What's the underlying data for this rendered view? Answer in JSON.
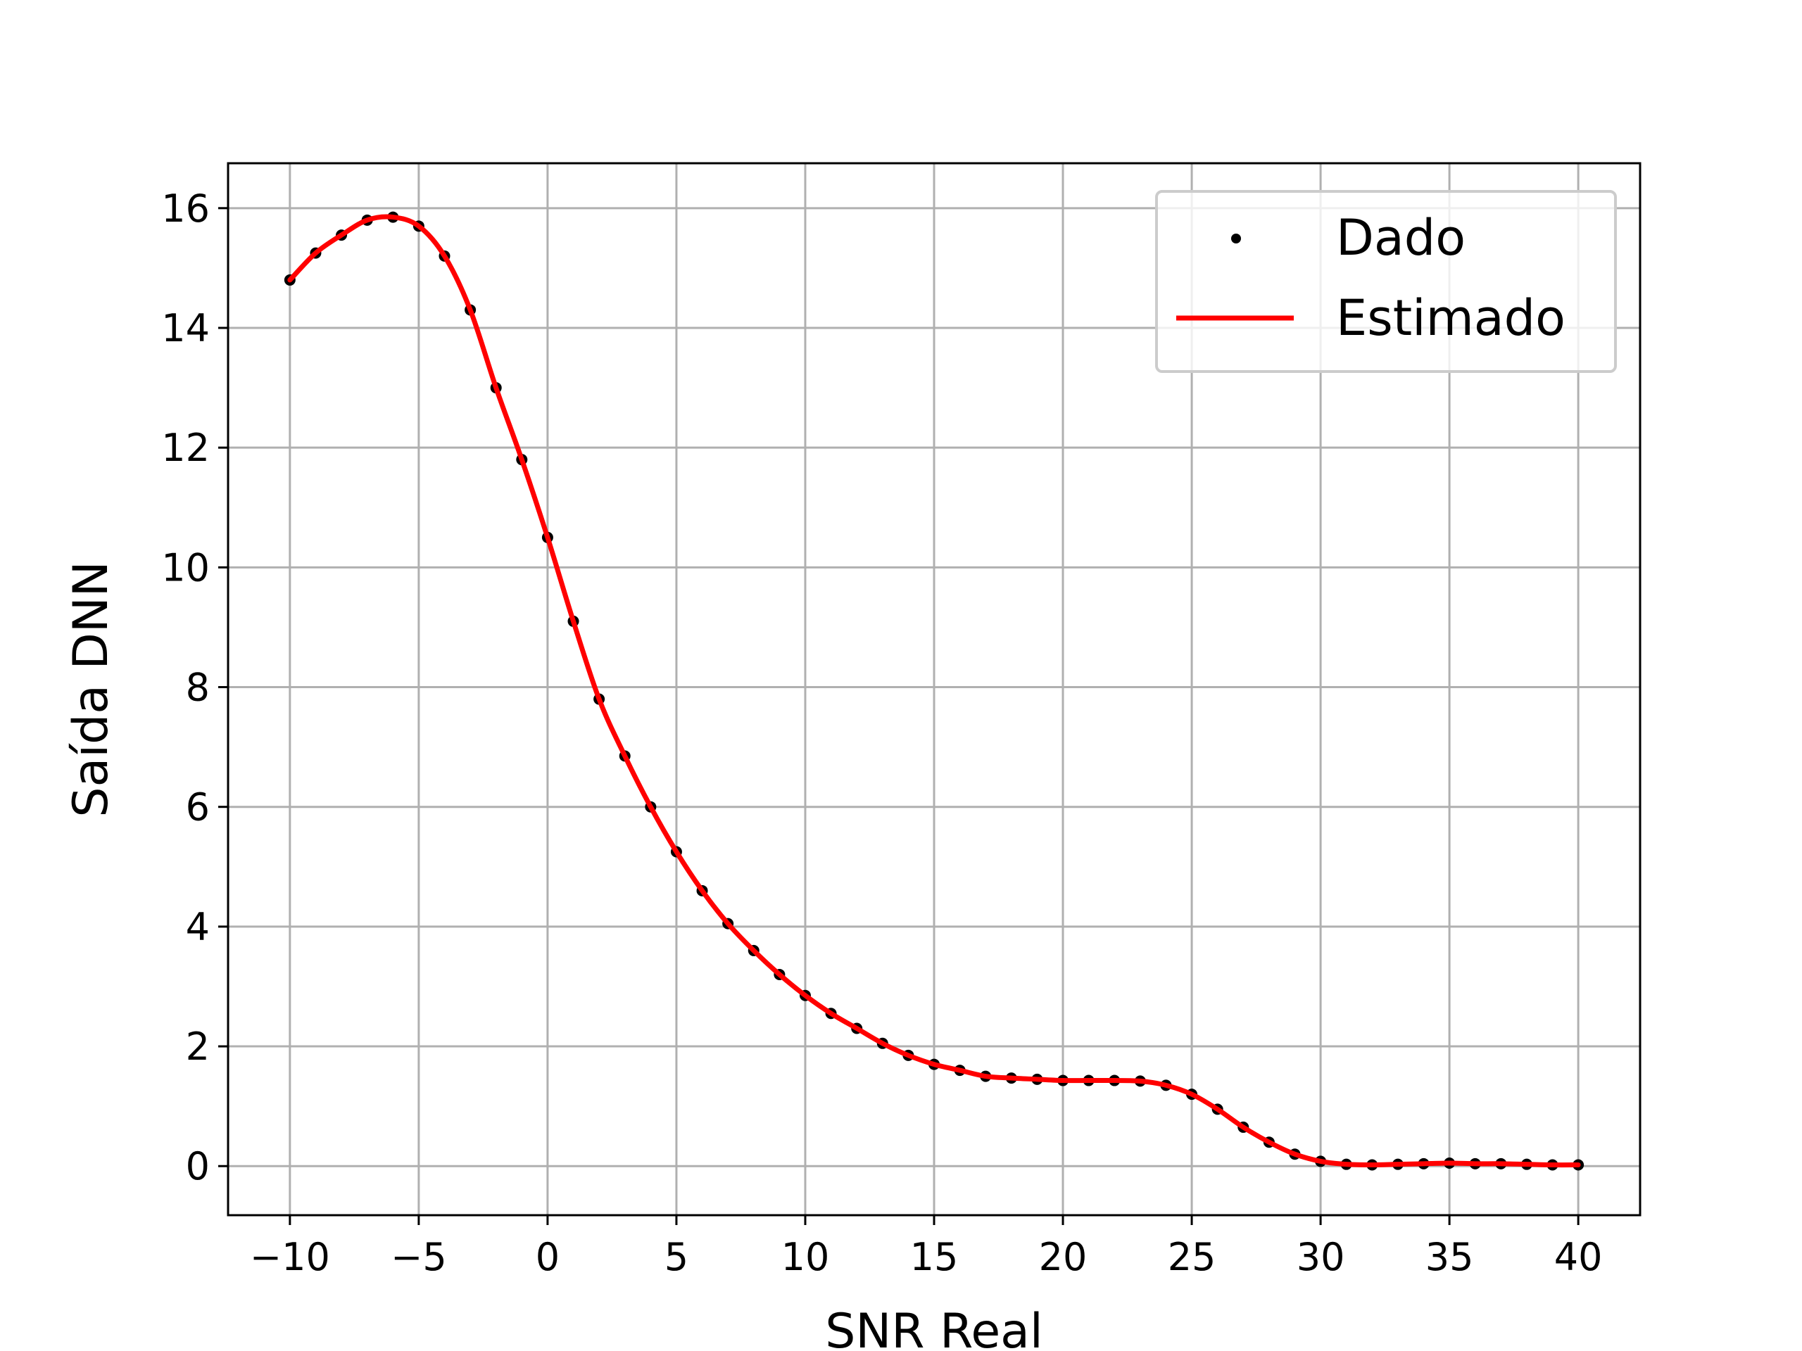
{
  "chart_data": {
    "type": "line",
    "title": "",
    "xlabel": "SNR Real",
    "ylabel": "Saída DNN",
    "xlim": [
      -12.4,
      42.4
    ],
    "ylim": [
      -0.82,
      16.75
    ],
    "xticks": [
      -10,
      -5,
      0,
      5,
      10,
      15,
      20,
      25,
      30,
      35,
      40
    ],
    "xtick_labels": [
      "−10",
      "−5",
      "0",
      "5",
      "10",
      "15",
      "20",
      "25",
      "30",
      "35",
      "40"
    ],
    "yticks": [
      0,
      2,
      4,
      6,
      8,
      10,
      12,
      14,
      16
    ],
    "ytick_labels": [
      "0",
      "2",
      "4",
      "6",
      "8",
      "10",
      "12",
      "14",
      "16"
    ],
    "grid": true,
    "legend_position": "top-right",
    "series": [
      {
        "name": "Dado",
        "style": "scatter",
        "color": "#000000",
        "x": [
          -10,
          -9,
          -8,
          -7,
          -6,
          -5,
          -4,
          -3,
          -2,
          -1,
          0,
          1,
          2,
          3,
          4,
          5,
          6,
          7,
          8,
          9,
          10,
          11,
          12,
          13,
          14,
          15,
          16,
          17,
          18,
          19,
          20,
          21,
          22,
          23,
          24,
          25,
          26,
          27,
          28,
          29,
          30,
          31,
          32,
          33,
          34,
          35,
          36,
          37,
          38,
          39,
          40
        ],
        "y": [
          14.8,
          15.25,
          15.55,
          15.8,
          15.85,
          15.7,
          15.2,
          14.3,
          13.0,
          11.8,
          10.5,
          9.1,
          7.8,
          6.85,
          6.0,
          5.25,
          4.6,
          4.05,
          3.6,
          3.2,
          2.85,
          2.55,
          2.3,
          2.05,
          1.85,
          1.7,
          1.6,
          1.5,
          1.47,
          1.45,
          1.43,
          1.43,
          1.43,
          1.42,
          1.35,
          1.2,
          0.95,
          0.65,
          0.4,
          0.2,
          0.08,
          0.03,
          0.02,
          0.03,
          0.04,
          0.05,
          0.04,
          0.04,
          0.03,
          0.02,
          0.02
        ]
      },
      {
        "name": "Estimado",
        "style": "line",
        "color": "#ff0000",
        "x": [
          -10,
          -9,
          -8,
          -7,
          -6,
          -5,
          -4,
          -3,
          -2,
          -1,
          0,
          1,
          2,
          3,
          4,
          5,
          6,
          7,
          8,
          9,
          10,
          11,
          12,
          13,
          14,
          15,
          16,
          17,
          18,
          19,
          20,
          21,
          22,
          23,
          24,
          25,
          26,
          27,
          28,
          29,
          30,
          31,
          32,
          33,
          34,
          35,
          36,
          37,
          38,
          39,
          40
        ],
        "y": [
          14.8,
          15.25,
          15.55,
          15.8,
          15.85,
          15.7,
          15.2,
          14.3,
          13.0,
          11.8,
          10.5,
          9.1,
          7.8,
          6.85,
          6.0,
          5.25,
          4.6,
          4.05,
          3.6,
          3.2,
          2.85,
          2.55,
          2.3,
          2.05,
          1.85,
          1.7,
          1.6,
          1.5,
          1.47,
          1.45,
          1.43,
          1.43,
          1.43,
          1.42,
          1.35,
          1.2,
          0.95,
          0.65,
          0.4,
          0.2,
          0.08,
          0.03,
          0.02,
          0.03,
          0.04,
          0.05,
          0.04,
          0.04,
          0.03,
          0.02,
          0.02
        ]
      }
    ]
  }
}
